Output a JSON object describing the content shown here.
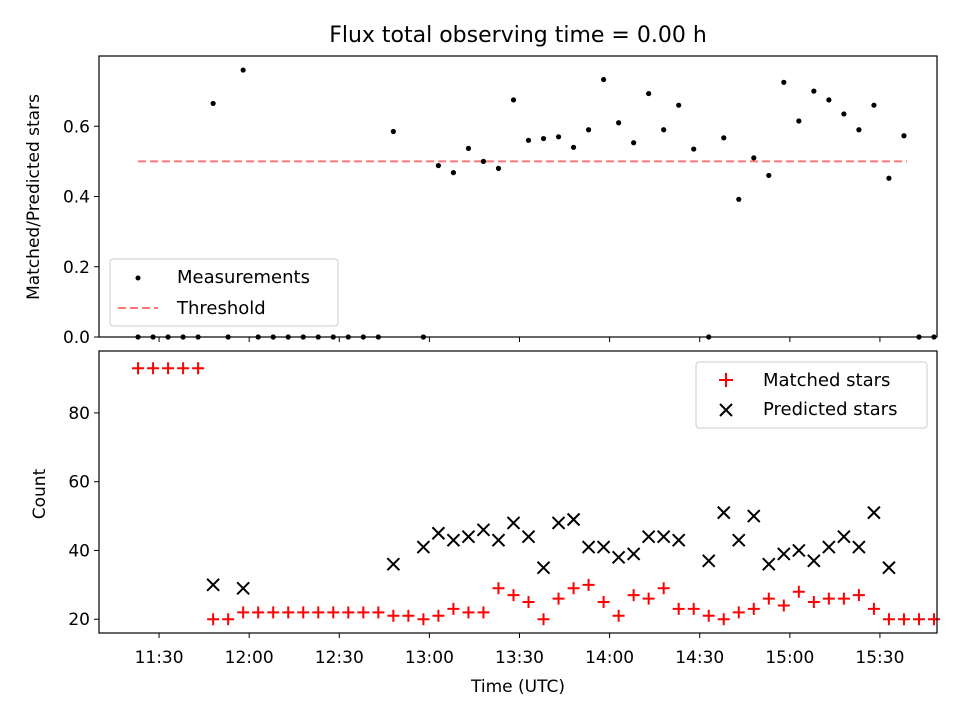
{
  "chart_data": [
    {
      "type": "scatter",
      "title": "Flux total observing time = 0.00 h",
      "xlabel": "",
      "ylabel": "Matched/Predicted stars",
      "xlim": [
        "11:10",
        "15:49"
      ],
      "ylim": [
        0.0,
        0.8
      ],
      "yticks": [
        0.0,
        0.2,
        0.4,
        0.6
      ],
      "ytick_labels": [
        "0.0",
        "0.2",
        "0.4",
        "0.6"
      ],
      "grid": false,
      "legend_position": "lower-left",
      "legend": [
        "Measurements",
        "Threshold"
      ],
      "threshold": {
        "value": 0.5,
        "x_start": "11:23",
        "x_end": "15:39",
        "color": "#ff7777"
      },
      "series": [
        {
          "name": "Measurements",
          "color": "#000000",
          "marker": "dot",
          "points": [
            [
              "11:23",
              0.0
            ],
            [
              "11:28",
              0.0
            ],
            [
              "11:33",
              0.0
            ],
            [
              "11:38",
              0.0
            ],
            [
              "11:43",
              0.0
            ],
            [
              "11:48",
              0.665
            ],
            [
              "11:53",
              0.0
            ],
            [
              "11:58",
              0.76
            ],
            [
              "12:03",
              0.0
            ],
            [
              "12:08",
              0.0
            ],
            [
              "12:13",
              0.0
            ],
            [
              "12:18",
              0.0
            ],
            [
              "12:23",
              0.0
            ],
            [
              "12:28",
              0.0
            ],
            [
              "12:33",
              0.0
            ],
            [
              "12:38",
              0.0
            ],
            [
              "12:43",
              0.0
            ],
            [
              "12:48",
              0.585
            ],
            [
              "12:58",
              0.0
            ],
            [
              "13:03",
              0.488
            ],
            [
              "13:08",
              0.468
            ],
            [
              "13:13",
              0.537
            ],
            [
              "13:18",
              0.5
            ],
            [
              "13:23",
              0.48
            ],
            [
              "13:28",
              0.675
            ],
            [
              "13:33",
              0.56
            ],
            [
              "13:38",
              0.565
            ],
            [
              "13:43",
              0.57
            ],
            [
              "13:48",
              0.54
            ],
            [
              "13:53",
              0.59
            ],
            [
              "13:58",
              0.733
            ],
            [
              "14:03",
              0.61
            ],
            [
              "14:08",
              0.553
            ],
            [
              "14:13",
              0.693
            ],
            [
              "14:18",
              0.59
            ],
            [
              "14:23",
              0.66
            ],
            [
              "14:28",
              0.535
            ],
            [
              "14:33",
              0.0
            ],
            [
              "14:38",
              0.567
            ],
            [
              "14:43",
              0.392
            ],
            [
              "14:48",
              0.51
            ],
            [
              "14:53",
              0.46
            ],
            [
              "14:58",
              0.725
            ],
            [
              "15:03",
              0.615
            ],
            [
              "15:08",
              0.7
            ],
            [
              "15:13",
              0.675
            ],
            [
              "15:18",
              0.635
            ],
            [
              "15:23",
              0.59
            ],
            [
              "15:28",
              0.66
            ],
            [
              "15:33",
              0.452
            ],
            [
              "15:38",
              0.573
            ],
            [
              "15:43",
              0.0
            ],
            [
              "15:48",
              0.0
            ]
          ]
        }
      ]
    },
    {
      "type": "scatter",
      "title": "",
      "xlabel": "Time (UTC)",
      "ylabel": "Count",
      "xlim": [
        "11:10",
        "15:49"
      ],
      "ylim": [
        16,
        98
      ],
      "yticks": [
        20,
        40,
        60,
        80
      ],
      "ytick_labels": [
        "20",
        "40",
        "60",
        "80"
      ],
      "xticks": [
        "11:30",
        "12:00",
        "12:30",
        "13:00",
        "13:30",
        "14:00",
        "14:30",
        "15:00",
        "15:30"
      ],
      "grid": false,
      "legend_position": "top-right",
      "legend": [
        "Matched stars",
        "Predicted stars"
      ],
      "series": [
        {
          "name": "Matched stars",
          "color": "#ff0000",
          "marker": "plus",
          "points": [
            [
              "11:23",
              93
            ],
            [
              "11:28",
              93
            ],
            [
              "11:33",
              93
            ],
            [
              "11:38",
              93
            ],
            [
              "11:43",
              93
            ],
            [
              "11:48",
              20
            ],
            [
              "11:53",
              20
            ],
            [
              "11:58",
              22
            ],
            [
              "12:03",
              22
            ],
            [
              "12:08",
              22
            ],
            [
              "12:13",
              22
            ],
            [
              "12:18",
              22
            ],
            [
              "12:23",
              22
            ],
            [
              "12:28",
              22
            ],
            [
              "12:33",
              22
            ],
            [
              "12:38",
              22
            ],
            [
              "12:43",
              22
            ],
            [
              "12:48",
              21
            ],
            [
              "12:53",
              21
            ],
            [
              "12:58",
              20
            ],
            [
              "13:03",
              21
            ],
            [
              "13:08",
              23
            ],
            [
              "13:13",
              22
            ],
            [
              "13:18",
              22
            ],
            [
              "13:23",
              29
            ],
            [
              "13:28",
              27
            ],
            [
              "13:33",
              25
            ],
            [
              "13:38",
              20
            ],
            [
              "13:43",
              26
            ],
            [
              "13:48",
              29
            ],
            [
              "13:53",
              30
            ],
            [
              "13:58",
              25
            ],
            [
              "14:03",
              21
            ],
            [
              "14:08",
              27
            ],
            [
              "14:13",
              26
            ],
            [
              "14:18",
              29
            ],
            [
              "14:23",
              23
            ],
            [
              "14:28",
              23
            ],
            [
              "14:33",
              21
            ],
            [
              "14:38",
              20
            ],
            [
              "14:43",
              22
            ],
            [
              "14:48",
              23
            ],
            [
              "14:53",
              26
            ],
            [
              "14:58",
              24
            ],
            [
              "15:03",
              28
            ],
            [
              "15:08",
              25
            ],
            [
              "15:13",
              26
            ],
            [
              "15:18",
              26
            ],
            [
              "15:23",
              27
            ],
            [
              "15:28",
              23
            ],
            [
              "15:33",
              20
            ],
            [
              "15:38",
              20
            ],
            [
              "15:43",
              20
            ],
            [
              "15:48",
              20
            ]
          ]
        },
        {
          "name": "Predicted stars",
          "color": "#000000",
          "marker": "x",
          "points": [
            [
              "11:48",
              30
            ],
            [
              "11:58",
              29
            ],
            [
              "12:48",
              36
            ],
            [
              "12:58",
              41
            ],
            [
              "13:03",
              45
            ],
            [
              "13:08",
              43
            ],
            [
              "13:13",
              44
            ],
            [
              "13:18",
              46
            ],
            [
              "13:23",
              43
            ],
            [
              "13:28",
              48
            ],
            [
              "13:33",
              44
            ],
            [
              "13:38",
              35
            ],
            [
              "13:43",
              48
            ],
            [
              "13:48",
              49
            ],
            [
              "13:53",
              41
            ],
            [
              "13:58",
              41
            ],
            [
              "14:03",
              38
            ],
            [
              "14:08",
              39
            ],
            [
              "14:13",
              44
            ],
            [
              "14:18",
              44
            ],
            [
              "14:23",
              43
            ],
            [
              "14:33",
              37
            ],
            [
              "14:38",
              51
            ],
            [
              "14:43",
              43
            ],
            [
              "14:48",
              50
            ],
            [
              "14:53",
              36
            ],
            [
              "14:58",
              39
            ],
            [
              "15:03",
              40
            ],
            [
              "15:08",
              37
            ],
            [
              "15:13",
              41
            ],
            [
              "15:18",
              44
            ],
            [
              "15:23",
              41
            ],
            [
              "15:28",
              51
            ],
            [
              "15:33",
              35
            ]
          ]
        }
      ]
    }
  ]
}
